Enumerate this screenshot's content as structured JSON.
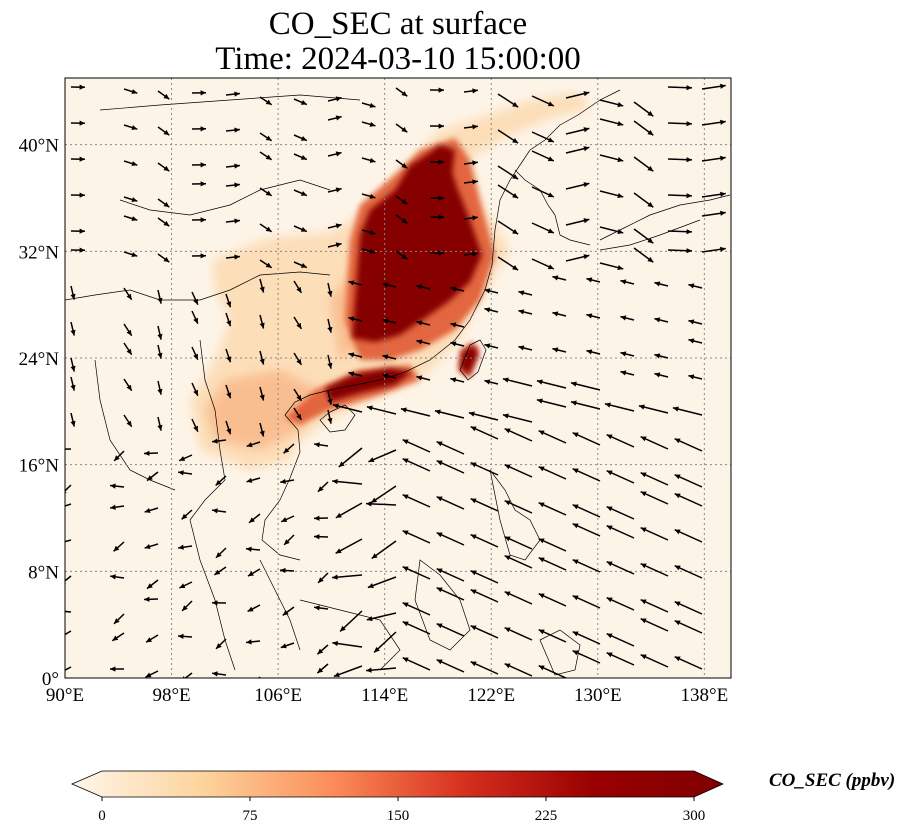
{
  "title_line1": "CO_SEC at surface",
  "title_line2": "Time: 2024-03-10 15:00:00",
  "map": {
    "lon_range": [
      90,
      140
    ],
    "lat_range": [
      0,
      45
    ],
    "lon_ticks": [
      {
        "value": 90,
        "label": "90°E"
      },
      {
        "value": 98,
        "label": "98°E"
      },
      {
        "value": 106,
        "label": "106°E"
      },
      {
        "value": 114,
        "label": "114°E"
      },
      {
        "value": 122,
        "label": "122°E"
      },
      {
        "value": 130,
        "label": "130°E"
      },
      {
        "value": 138,
        "label": "138°E"
      }
    ],
    "lat_ticks": [
      {
        "value": 0,
        "label": "0°"
      },
      {
        "value": 8,
        "label": "8°N"
      },
      {
        "value": 16,
        "label": "16°N"
      },
      {
        "value": 24,
        "label": "24°N"
      },
      {
        "value": 32,
        "label": "32°N"
      },
      {
        "value": 40,
        "label": "40°N"
      }
    ],
    "grid": true,
    "background_color": "#fdf4e8",
    "coastline_color": "#000000"
  },
  "colorbar": {
    "label": "CO_SEC (ppbv)",
    "min": 0,
    "max": 300,
    "ticks": [
      {
        "value": 0,
        "label": "0"
      },
      {
        "value": 75,
        "label": "75"
      },
      {
        "value": 150,
        "label": "150"
      },
      {
        "value": 225,
        "label": "225"
      },
      {
        "value": 300,
        "label": "300"
      }
    ],
    "colors": [
      "#fff5eb",
      "#fdd49e",
      "#fc8d59",
      "#d7301f",
      "#990000",
      "#7f0000"
    ],
    "extend": "both"
  }
}
